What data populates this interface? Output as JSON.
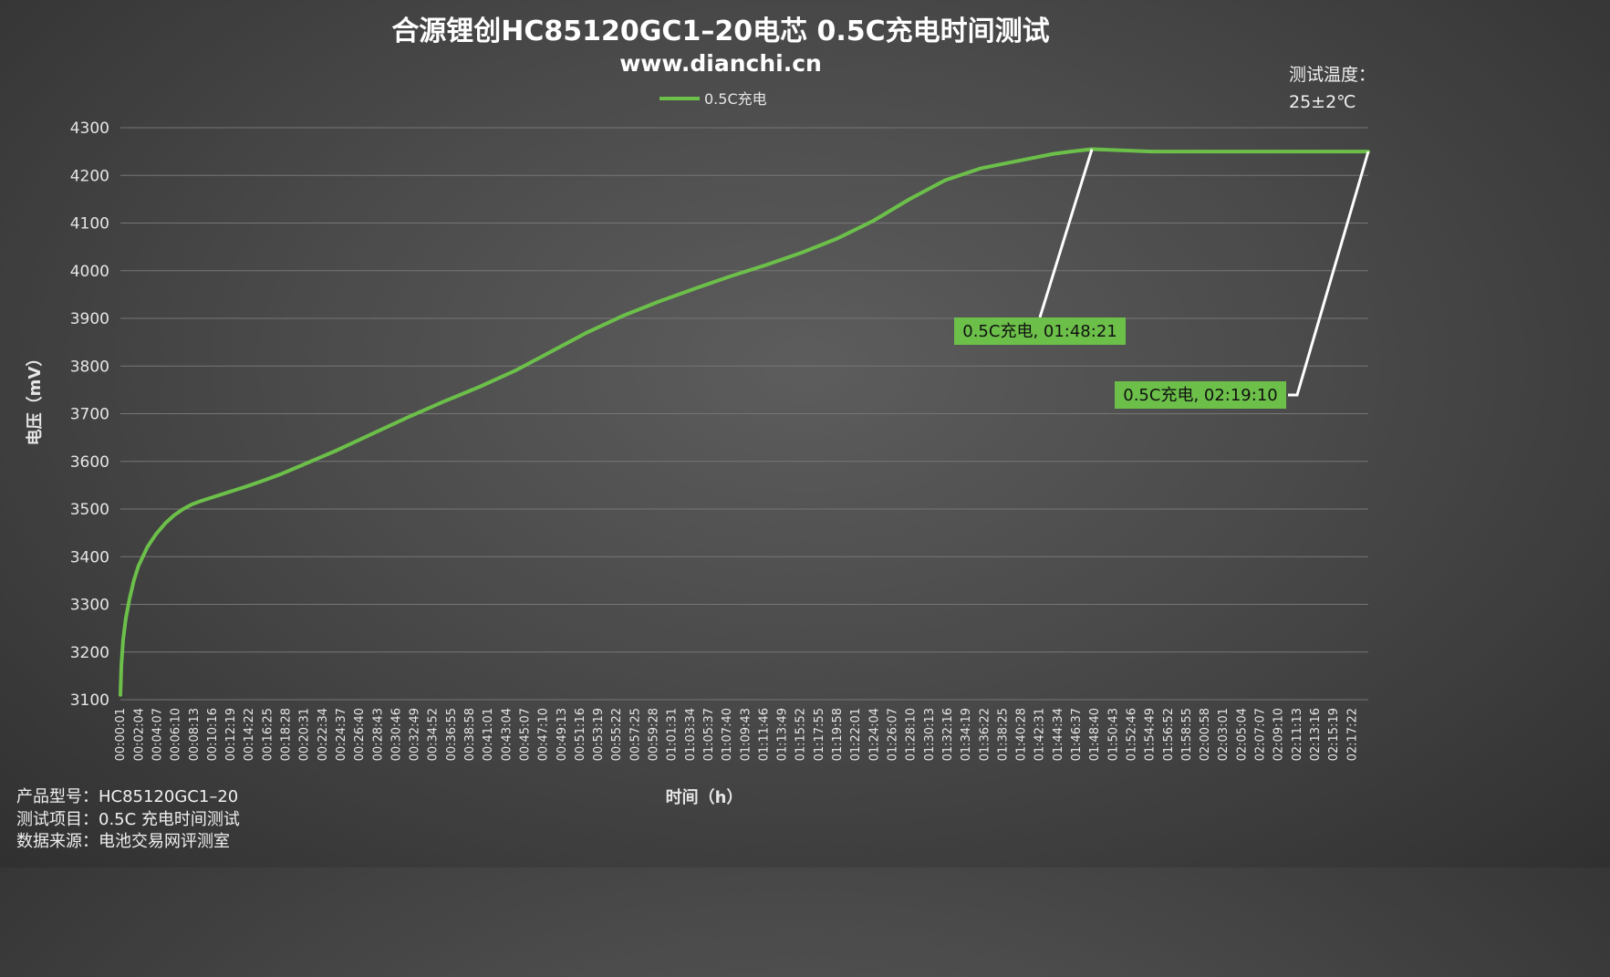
{
  "chart_data": {
    "type": "line",
    "title": "合源锂创HC85120GC1–20电芯 0.5C充电时间测试",
    "subtitle": "www.dianchi.cn",
    "xlabel": "时间（h）",
    "ylabel": "电压（mV）",
    "ylim": [
      3100,
      4300
    ],
    "yticks": [
      3100,
      3200,
      3300,
      3400,
      3500,
      3600,
      3700,
      3800,
      3900,
      4000,
      4100,
      4200,
      4300
    ],
    "grid": true,
    "legend_position": "top-center",
    "series_color": "#6cc04a",
    "x_tick_labels": [
      "00:00:01",
      "00:02:04",
      "00:04:07",
      "00:06:10",
      "00:08:13",
      "00:10:16",
      "00:12:19",
      "00:14:22",
      "00:16:25",
      "00:18:28",
      "00:20:31",
      "00:22:34",
      "00:24:37",
      "00:26:40",
      "00:28:43",
      "00:30:46",
      "00:32:49",
      "00:34:52",
      "00:36:55",
      "00:38:58",
      "00:41:01",
      "00:43:04",
      "00:45:07",
      "00:47:10",
      "00:49:13",
      "00:51:16",
      "00:53:19",
      "00:55:22",
      "00:57:25",
      "00:59:28",
      "01:01:31",
      "01:03:34",
      "01:05:37",
      "01:07:40",
      "01:09:43",
      "01:11:46",
      "01:13:49",
      "01:15:52",
      "01:17:55",
      "01:19:58",
      "01:22:01",
      "01:24:04",
      "01:26:07",
      "01:28:10",
      "01:30:13",
      "01:32:16",
      "01:34:19",
      "01:36:22",
      "01:38:25",
      "01:40:28",
      "01:42:31",
      "01:44:34",
      "01:46:37",
      "01:48:40",
      "01:50:43",
      "01:52:46",
      "01:54:49",
      "01:56:52",
      "01:58:55",
      "02:00:58",
      "02:03:01",
      "02:05:04",
      "02:07:07",
      "02:09:10",
      "02:11:13",
      "02:13:16",
      "02:15:19",
      "02:17:22"
    ],
    "series": [
      {
        "name": "0.5C充电",
        "x_minutes": [
          0,
          0.1,
          0.3,
          0.6,
          1,
          1.5,
          2,
          3,
          4,
          5,
          6,
          7,
          8,
          9,
          10,
          12,
          14,
          16,
          18,
          20,
          24,
          28,
          32,
          36,
          40,
          44,
          48,
          52,
          56,
          60,
          64,
          68,
          72,
          76,
          80,
          84,
          88,
          92,
          96,
          100,
          104,
          106,
          108.35,
          115,
          125,
          139.17
        ],
        "values": [
          3110,
          3170,
          3225,
          3270,
          3310,
          3350,
          3380,
          3420,
          3448,
          3470,
          3487,
          3500,
          3510,
          3517,
          3523,
          3535,
          3547,
          3560,
          3574,
          3590,
          3622,
          3657,
          3692,
          3725,
          3756,
          3790,
          3830,
          3870,
          3905,
          3935,
          3962,
          3988,
          4012,
          4038,
          4068,
          4105,
          4150,
          4190,
          4215,
          4230,
          4245,
          4250,
          4255,
          4250,
          4250,
          4250
        ]
      }
    ],
    "annotations": [
      {
        "label": "0.5C充电, 01:48:21",
        "x_minutes": 108.35,
        "y": 4255
      },
      {
        "label": "0.5C充电, 02:19:10",
        "x_minutes": 139.17,
        "y": 4250
      }
    ]
  },
  "note": {
    "line1": "测试温度：",
    "line2": "25±2℃"
  },
  "info": {
    "model": "产品型号：HC85120GC1–20",
    "item": "测试项目：0.5C 充电时间测试",
    "source": "数据来源：电池交易网评测室"
  }
}
